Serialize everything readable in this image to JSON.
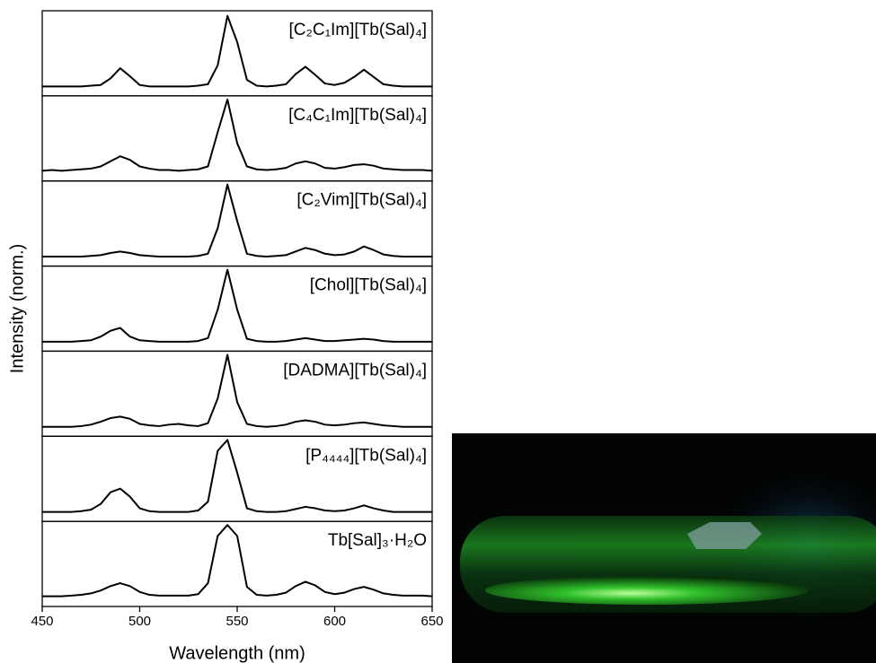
{
  "chart_data": {
    "type": "line",
    "xlabel": "Wavelength (nm)",
    "ylabel": "Intensity (norm.)",
    "xlim": [
      450,
      650
    ],
    "xticks": [
      450,
      500,
      550,
      600,
      650
    ],
    "ylim": [
      -0.12,
      1.05
    ],
    "color": "#000000",
    "x": [
      450,
      455,
      460,
      465,
      470,
      475,
      480,
      485,
      490,
      495,
      500,
      505,
      510,
      515,
      520,
      525,
      530,
      535,
      540,
      545,
      550,
      555,
      560,
      565,
      570,
      575,
      580,
      585,
      590,
      595,
      600,
      605,
      610,
      615,
      620,
      625,
      630,
      635,
      640,
      645,
      650
    ],
    "series": [
      {
        "name": "[C₂C₁Im][Tb(Sal)₄]",
        "values": [
          0.01,
          0.01,
          0.01,
          0.01,
          0.01,
          0.02,
          0.03,
          0.12,
          0.26,
          0.15,
          0.03,
          0.01,
          0.01,
          0.01,
          0.01,
          0.01,
          0.02,
          0.04,
          0.3,
          0.98,
          0.62,
          0.1,
          0.02,
          0.01,
          0.02,
          0.04,
          0.18,
          0.28,
          0.17,
          0.05,
          0.03,
          0.06,
          0.14,
          0.24,
          0.14,
          0.04,
          0.02,
          0.01,
          0.01,
          0.01,
          0.01
        ]
      },
      {
        "name": "[C₄C₁Im][Tb(Sal)₄]",
        "values": [
          0.02,
          0.03,
          0.02,
          0.03,
          0.04,
          0.05,
          0.08,
          0.15,
          0.22,
          0.17,
          0.08,
          0.05,
          0.03,
          0.03,
          0.02,
          0.03,
          0.04,
          0.08,
          0.55,
          1.0,
          0.4,
          0.08,
          0.04,
          0.03,
          0.04,
          0.06,
          0.12,
          0.15,
          0.12,
          0.06,
          0.05,
          0.07,
          0.1,
          0.11,
          0.09,
          0.05,
          0.04,
          0.03,
          0.03,
          0.03,
          0.02
        ]
      },
      {
        "name": "[C₂Vim][Tb(Sal)₄]",
        "values": [
          0.01,
          0.01,
          0.01,
          0.01,
          0.01,
          0.02,
          0.03,
          0.06,
          0.08,
          0.06,
          0.03,
          0.02,
          0.01,
          0.01,
          0.01,
          0.01,
          0.02,
          0.05,
          0.4,
          1.0,
          0.5,
          0.05,
          0.02,
          0.01,
          0.02,
          0.03,
          0.08,
          0.13,
          0.1,
          0.05,
          0.03,
          0.04,
          0.08,
          0.15,
          0.1,
          0.04,
          0.02,
          0.01,
          0.01,
          0.01,
          0.01
        ]
      },
      {
        "name": "[Chol][Tb(Sal)₄]",
        "values": [
          0.01,
          0.01,
          0.01,
          0.01,
          0.02,
          0.03,
          0.08,
          0.16,
          0.2,
          0.08,
          0.03,
          0.02,
          0.01,
          0.01,
          0.01,
          0.01,
          0.02,
          0.06,
          0.45,
          1.0,
          0.45,
          0.05,
          0.02,
          0.01,
          0.01,
          0.02,
          0.04,
          0.06,
          0.04,
          0.02,
          0.02,
          0.03,
          0.04,
          0.05,
          0.04,
          0.02,
          0.01,
          0.01,
          0.01,
          0.01,
          0.01
        ]
      },
      {
        "name": "[DADMA][Tb(Sal)₄]",
        "values": [
          0.01,
          0.01,
          0.01,
          0.01,
          0.02,
          0.04,
          0.08,
          0.13,
          0.15,
          0.12,
          0.05,
          0.03,
          0.02,
          0.04,
          0.05,
          0.03,
          0.02,
          0.06,
          0.4,
          1.0,
          0.35,
          0.05,
          0.02,
          0.01,
          0.02,
          0.04,
          0.08,
          0.1,
          0.08,
          0.04,
          0.03,
          0.04,
          0.06,
          0.07,
          0.05,
          0.03,
          0.02,
          0.01,
          0.01,
          0.01,
          0.01
        ]
      },
      {
        "name": "[P₄₄₄₄][Tb(Sal)₄]",
        "values": [
          0.01,
          0.01,
          0.01,
          0.01,
          0.02,
          0.04,
          0.12,
          0.28,
          0.33,
          0.22,
          0.06,
          0.02,
          0.01,
          0.01,
          0.01,
          0.01,
          0.03,
          0.15,
          0.85,
          1.0,
          0.55,
          0.06,
          0.02,
          0.01,
          0.01,
          0.02,
          0.05,
          0.08,
          0.06,
          0.03,
          0.02,
          0.03,
          0.06,
          0.1,
          0.06,
          0.03,
          0.01,
          0.01,
          0.01,
          0.01,
          0.01
        ]
      },
      {
        "name": "Tb[Sal]₃·H₂O",
        "values": [
          0.02,
          0.02,
          0.02,
          0.03,
          0.04,
          0.06,
          0.1,
          0.16,
          0.2,
          0.16,
          0.08,
          0.04,
          0.03,
          0.03,
          0.03,
          0.03,
          0.05,
          0.2,
          0.85,
          1.0,
          0.85,
          0.15,
          0.04,
          0.03,
          0.04,
          0.07,
          0.16,
          0.22,
          0.17,
          0.08,
          0.05,
          0.07,
          0.12,
          0.15,
          0.11,
          0.06,
          0.04,
          0.03,
          0.03,
          0.03,
          0.02
        ]
      }
    ]
  }
}
